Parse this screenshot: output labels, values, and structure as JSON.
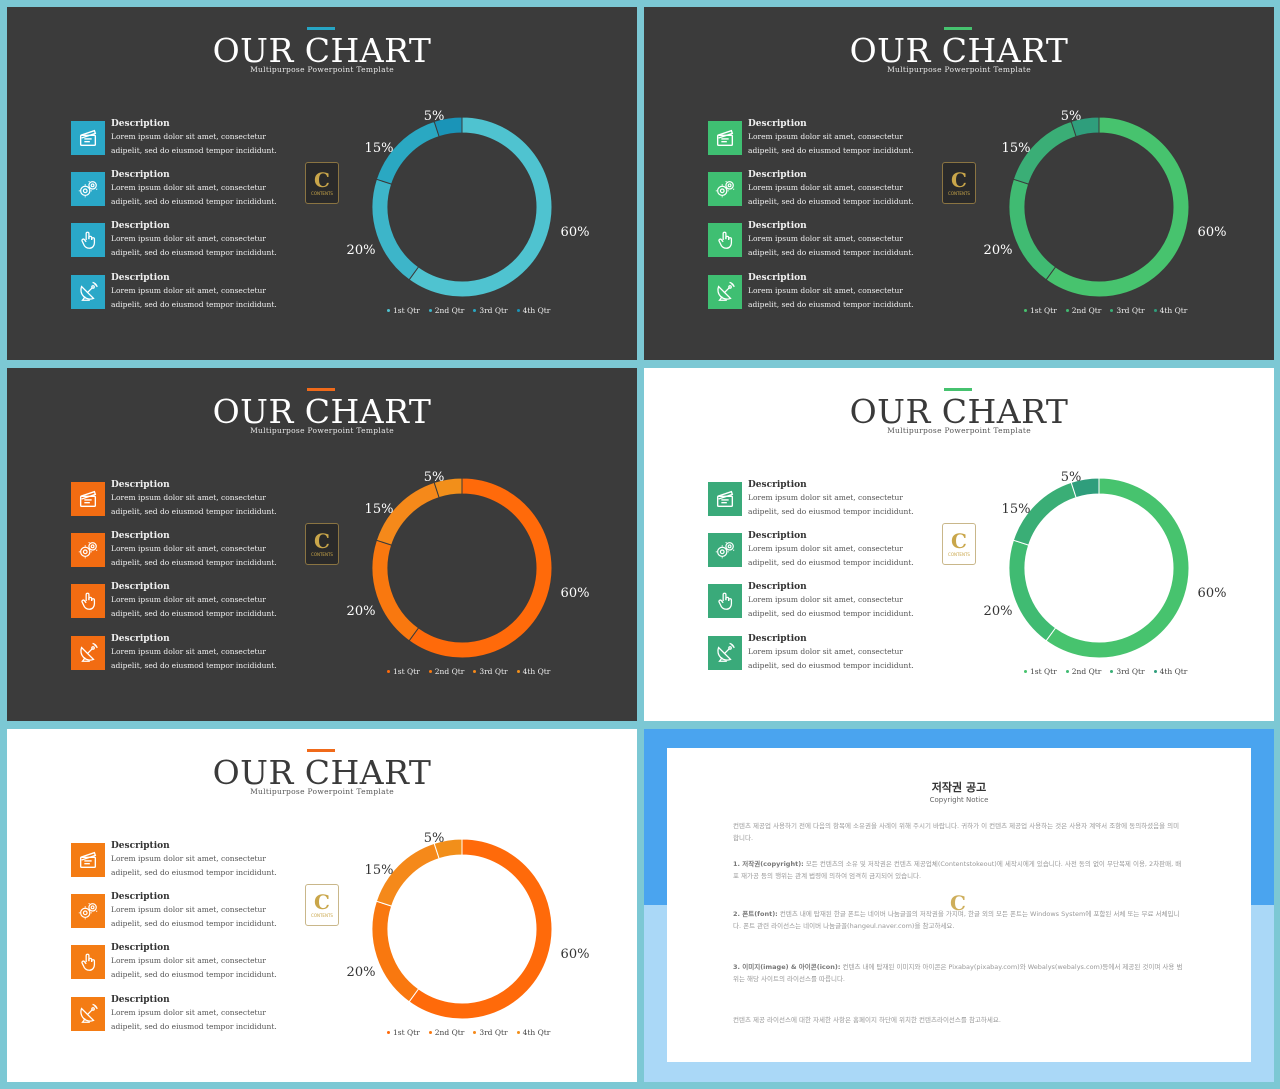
{
  "slides": [
    {
      "id": 1,
      "theme": "dark",
      "accent": "#26a5c4",
      "icon_color": "#2aa8c8",
      "ring": [
        "#4fc3d0",
        "#3db5c9",
        "#2aa8c2",
        "#1a94b8"
      ],
      "logo": "dark"
    },
    {
      "id": 2,
      "theme": "dark",
      "accent": "#46c26f",
      "icon_color": "#3fbf72",
      "ring": [
        "#47c36e",
        "#40bb72",
        "#3aae76",
        "#2f9e7c"
      ],
      "logo": "dark"
    },
    {
      "id": 3,
      "theme": "dark",
      "accent": "#f06a1a",
      "icon_color": "#f26c12",
      "ring": [
        "#ff6a0a",
        "#f9780f",
        "#f5891a",
        "#f28f1a"
      ],
      "logo": "dark"
    },
    {
      "id": 4,
      "theme": "light",
      "accent": "#46c26f",
      "icon_color": "#3aaa7a",
      "ring": [
        "#47c36e",
        "#40bb72",
        "#3aae76",
        "#2f9e7c"
      ],
      "logo": "light"
    },
    {
      "id": 5,
      "theme": "light",
      "accent": "#f06a1a",
      "icon_color": "#f47c14",
      "ring": [
        "#ff6a0a",
        "#f9780f",
        "#f5891a",
        "#f28f1a"
      ],
      "logo": "light"
    }
  ],
  "slide_text": {
    "title": "OUR CHART",
    "subtitle": "Multipurpose Powerpoint Template",
    "items": [
      {
        "icon": "clapperboard-icon",
        "heading": "Description",
        "line1": "Lorem ipsum dolor sit amet, consectetur",
        "line2": "adipelit,  sed do eiusmod tempor incididunt."
      },
      {
        "icon": "gears-icon",
        "heading": "Description",
        "line1": "Lorem ipsum dolor sit amet, consectetur",
        "line2": "adipelit,  sed do eiusmod tempor incididunt."
      },
      {
        "icon": "hand-pointer-icon",
        "heading": "Description",
        "line1": "Lorem ipsum dolor sit amet, consectetur",
        "line2": "adipelit,  sed do eiusmod tempor incididunt."
      },
      {
        "icon": "satellite-dish-icon",
        "heading": "Description",
        "line1": "Lorem ipsum dolor sit amet, consectetur",
        "line2": "adipelit,  sed do eiusmod tempor incididunt."
      }
    ],
    "logo_letter": "C",
    "logo_text": "CONTENTS"
  },
  "chart_data": {
    "type": "pie",
    "donut": true,
    "categories": [
      "1st Qtr",
      "2nd Qtr",
      "3rd Qtr",
      "4th Qtr"
    ],
    "values": [
      60,
      20,
      15,
      5
    ],
    "labels": [
      "60%",
      "20%",
      "15%",
      "5%"
    ],
    "legend_position": "bottom"
  },
  "copyright": {
    "title": "저작권 공고",
    "subtitle": "Copyright Notice",
    "paragraphs": [
      {
        "strong": "",
        "text": "컨텐츠 제공업 사용하기 전에 다음의 항목에 소유권을 사례이 위해 주시기 바랍니다. 귀하가 이 컨텐츠 제공업 사용하는 것은 사용자 계약서 조항에 동의하셨음을 의미합니다."
      },
      {
        "strong": "1. 저작권(copyright):",
        "text": " 모든 컨텐츠의 소유 및 저작권은 컨텐츠 제공업체(Contentstokeout)에 세작시에게 있습니다. 사전 동의 없이 무단복제 이용, 2차판매, 배포 재가공 등의 행위는 관계 법령에 의하여 엄격히 금지되어 있습니다."
      },
      {
        "strong": "2. 폰트(font):",
        "text": " 컨텐츠 내에 탑재된 한글 폰트는 네이버 나눔글꼴의 저작권을 가지며, 한글 외의 모든 폰트는 Windows System에 포함된 서체 또는 무료 서체입니다. 폰트 관련 라이선스는 네이버 나눔글꼴(hangeul.naver.com)을 참고하세요."
      },
      {
        "strong": "3. 이미지(image) & 아이콘(icon):",
        "text": " 컨텐츠 내에 탑재된 이미지와 아이콘은 Pixabay(pixabay.com)와 Webalys(webalys.com)등에서 제공된 것이며 사용 범위는 해당 사이트의 라이선스를 따릅니다."
      },
      {
        "strong": "",
        "text": "컨텐츠 제공 라이선스에 대한 자세한 사항은 홈페이지 하단에 위치한 컨텐츠라이선스를 참고하세요."
      }
    ]
  }
}
